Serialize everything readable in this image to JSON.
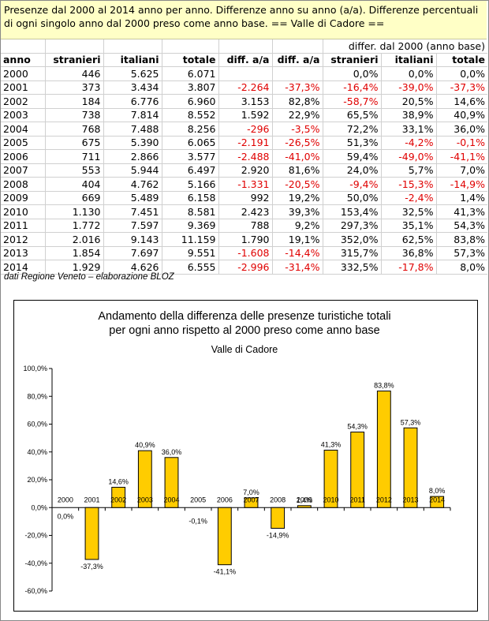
{
  "header": {
    "title": "Presenze dal 2000 al 2014 anno per anno. Differenze anno su anno (a/a). Differenze percentuali di ogni singolo anno dal 2000 preso come anno base. == Valle di Cadore =="
  },
  "table": {
    "group_header": "differ. dal 2000 (anno base)",
    "columns": [
      "anno",
      "stranieri",
      "italiani",
      "totale",
      "diff. a/a",
      "diff. a/a",
      "stranieri",
      "italiani",
      "totale"
    ],
    "rows": [
      [
        "2000",
        "446",
        "5.625",
        "6.071",
        "",
        "",
        "0,0%",
        "0,0%",
        "0,0%"
      ],
      [
        "2001",
        "373",
        "3.434",
        "3.807",
        "-2.264",
        "-37,3%",
        "-16,4%",
        "-39,0%",
        "-37,3%"
      ],
      [
        "2002",
        "184",
        "6.776",
        "6.960",
        "3.153",
        "82,8%",
        "-58,7%",
        "20,5%",
        "14,6%"
      ],
      [
        "2003",
        "738",
        "7.814",
        "8.552",
        "1.592",
        "22,9%",
        "65,5%",
        "38,9%",
        "40,9%"
      ],
      [
        "2004",
        "768",
        "7.488",
        "8.256",
        "-296",
        "-3,5%",
        "72,2%",
        "33,1%",
        "36,0%"
      ],
      [
        "2005",
        "675",
        "5.390",
        "6.065",
        "-2.191",
        "-26,5%",
        "51,3%",
        "-4,2%",
        "-0,1%"
      ],
      [
        "2006",
        "711",
        "2.866",
        "3.577",
        "-2.488",
        "-41,0%",
        "59,4%",
        "-49,0%",
        "-41,1%"
      ],
      [
        "2007",
        "553",
        "5.944",
        "6.497",
        "2.920",
        "81,6%",
        "24,0%",
        "5,7%",
        "7,0%"
      ],
      [
        "2008",
        "404",
        "4.762",
        "5.166",
        "-1.331",
        "-20,5%",
        "-9,4%",
        "-15,3%",
        "-14,9%"
      ],
      [
        "2009",
        "669",
        "5.489",
        "6.158",
        "992",
        "19,2%",
        "50,0%",
        "-2,4%",
        "1,4%"
      ],
      [
        "2010",
        "1.130",
        "7.451",
        "8.581",
        "2.423",
        "39,3%",
        "153,4%",
        "32,5%",
        "41,3%"
      ],
      [
        "2011",
        "1.772",
        "7.597",
        "9.369",
        "788",
        "9,2%",
        "297,3%",
        "35,1%",
        "54,3%"
      ],
      [
        "2012",
        "2.016",
        "9.143",
        "11.159",
        "1.790",
        "19,1%",
        "352,0%",
        "62,5%",
        "83,8%"
      ],
      [
        "2013",
        "1.854",
        "7.697",
        "9.551",
        "-1.608",
        "-14,4%",
        "315,7%",
        "36,8%",
        "57,3%"
      ],
      [
        "2014",
        "1.929",
        "4.626",
        "6.555",
        "-2.996",
        "-31,4%",
        "332,5%",
        "-17,8%",
        "8,0%"
      ]
    ]
  },
  "source": "dati Regione Veneto – elaborazione BLOZ",
  "chart_data": {
    "type": "bar",
    "title": "Andamento della differenza delle presenze turistiche totali per ogni anno rispetto al 2000 preso come anno base",
    "title_lines": [
      "Andamento della differenza delle presenze turistiche totali",
      "per ogni anno rispetto al 2000 preso come anno base"
    ],
    "subtitle": "Valle di Cadore",
    "categories": [
      "2000",
      "2001",
      "2002",
      "2003",
      "2004",
      "2005",
      "2006",
      "2007",
      "2008",
      "2009",
      "2010",
      "2011",
      "2012",
      "2013",
      "2014"
    ],
    "values": [
      0.0,
      -37.3,
      14.6,
      40.9,
      36.0,
      -0.1,
      -41.1,
      7.0,
      -14.9,
      1.4,
      41.3,
      54.3,
      83.8,
      57.3,
      8.0
    ],
    "data_labels": [
      "0,0%",
      "-37,3%",
      "14,6%",
      "40,9%",
      "36,0%",
      "-0,1%",
      "-41,1%",
      "7,0%",
      "-14,9%",
      "1,4%",
      "41,3%",
      "54,3%",
      "83,8%",
      "57,3%",
      "8,0%"
    ],
    "ylim": [
      -60,
      100
    ],
    "yticks": [
      -60,
      -40,
      -20,
      0,
      20,
      40,
      60,
      80,
      100
    ],
    "ytick_labels": [
      "-60,0%",
      "-40,0%",
      "-20,0%",
      "0,0%",
      "20,0%",
      "40,0%",
      "60,0%",
      "80,0%",
      "100,0%"
    ],
    "xlabel": "",
    "ylabel": "",
    "bar_color": "#ffcc00",
    "grid": false
  }
}
